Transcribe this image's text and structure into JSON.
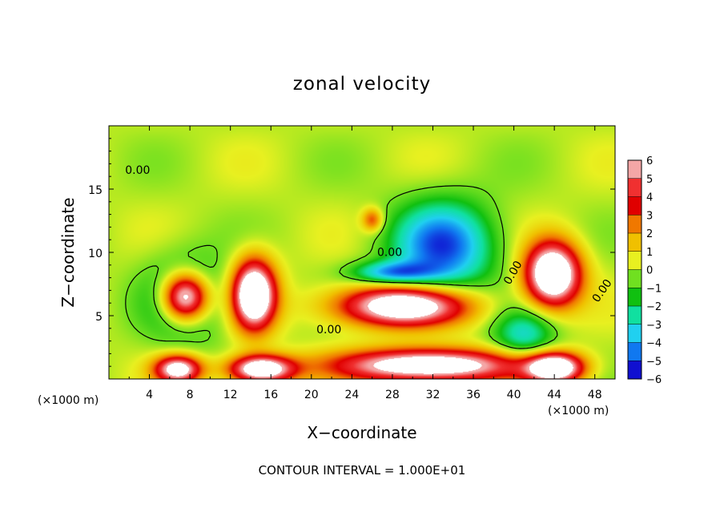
{
  "chart_data": {
    "type": "heatmap",
    "title": "zonal velocity",
    "xlabel": "X−coordinate",
    "ylabel": "Z−coordinate",
    "x_unit_label": "(×1000 m)",
    "x_unit_label_right": "(×1000 m)",
    "footer": "CONTOUR INTERVAL = 1.000E+01",
    "xlim": [
      0,
      50
    ],
    "ylim": [
      0,
      20
    ],
    "x_ticks": [
      4,
      8,
      12,
      16,
      20,
      24,
      28,
      32,
      36,
      40,
      44,
      48
    ],
    "x_tick_labels": [
      "4",
      "8",
      "12",
      "16",
      "20",
      "24",
      "28",
      "32",
      "36",
      "40",
      "44",
      "48"
    ],
    "y_ticks": [
      5,
      10,
      15
    ],
    "y_tick_labels": [
      "5",
      "10",
      "15"
    ],
    "colorbar": {
      "min": -6,
      "max": 6,
      "tick_values": [
        6,
        5,
        4,
        3,
        2,
        1,
        0,
        -1,
        -2,
        -3,
        -4,
        -5,
        -6
      ],
      "tick_labels": [
        "6",
        "5",
        "4",
        "3",
        "2",
        "1",
        "0",
        "−1",
        "−2",
        "−3",
        "−4",
        "−5",
        "−6"
      ],
      "colors": [
        "#f4a6a6",
        "#f03030",
        "#e00000",
        "#f07800",
        "#f0c000",
        "#e8f020",
        "#70e020",
        "#10c010",
        "#10e0a0",
        "#20d0f0",
        "#1078f0",
        "#1010d0",
        "#6010b0"
      ]
    },
    "contour_labels": [
      "0.00",
      "0.00",
      "0.00",
      "0.00",
      "0.00"
    ],
    "features": [
      {
        "kind": "positive",
        "x": 7.5,
        "z": 6.5,
        "rx": 2.3,
        "rz": 1.9,
        "amp": 9
      },
      {
        "kind": "positive",
        "x": 14.3,
        "z": 6.7,
        "rx": 2.1,
        "rz": 2.7,
        "amp": 9
      },
      {
        "kind": "positive",
        "x": 43.8,
        "z": 8.3,
        "rx": 2.7,
        "rz": 2.5,
        "amp": 9
      },
      {
        "kind": "positive",
        "x": 29,
        "z": 5.8,
        "rx": 6.5,
        "rz": 1.6,
        "amp": 8
      },
      {
        "kind": "positive",
        "x": 31.5,
        "z": 1.1,
        "rx": 9,
        "rz": 1.3,
        "amp": 8
      },
      {
        "kind": "positive",
        "x": 15,
        "z": 0.8,
        "rx": 3.2,
        "rz": 1.1,
        "amp": 8
      },
      {
        "kind": "positive",
        "x": 6.8,
        "z": 0.8,
        "rx": 2.3,
        "rz": 1.1,
        "amp": 7
      },
      {
        "kind": "positive",
        "x": 44,
        "z": 0.9,
        "rx": 2.8,
        "rz": 1.2,
        "amp": 8
      },
      {
        "kind": "positive",
        "x": 26,
        "z": 12.6,
        "rx": 1,
        "rz": 0.9,
        "amp": 3
      },
      {
        "kind": "negative",
        "x": 33,
        "z": 10.5,
        "rx": 5,
        "rz": 3.5,
        "amp": -5
      },
      {
        "kind": "negative",
        "x": 28,
        "z": 8.4,
        "rx": 4,
        "rz": 0.9,
        "amp": -4
      },
      {
        "kind": "negative",
        "x": 7.5,
        "z": 6.5,
        "rx": 4,
        "rz": 3.4,
        "amp": -3
      },
      {
        "kind": "negative",
        "x": 41,
        "z": 3.5,
        "rx": 3,
        "rz": 2,
        "amp": -3
      }
    ]
  }
}
